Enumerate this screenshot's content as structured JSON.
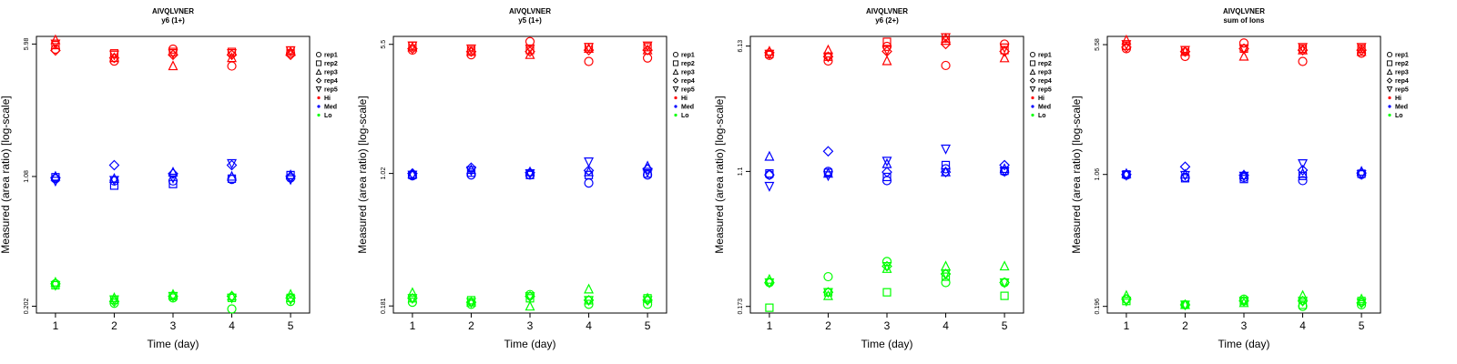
{
  "colors": {
    "Hi": "#ff0000",
    "Med": "#0000ff",
    "Lo": "#00ff00"
  },
  "legend": {
    "replicates": [
      {
        "label": "rep1",
        "shape": "circle"
      },
      {
        "label": "rep2",
        "shape": "square"
      },
      {
        "label": "rep3",
        "shape": "triangle-up"
      },
      {
        "label": "rep4",
        "shape": "diamond"
      },
      {
        "label": "rep5",
        "shape": "triangle-down"
      }
    ],
    "levels": [
      "Hi",
      "Med",
      "Lo"
    ]
  },
  "chart_data": [
    {
      "type": "scatter",
      "title": "AIVQLVNER",
      "subtitle": "y6 (1+)",
      "xlabel": "Time (day)",
      "ylabel": "Measured (area ratio) [log-scale]",
      "log_y": true,
      "ylim": [
        0.185,
        6.6
      ],
      "x_ticks": [
        1,
        2,
        3,
        4,
        5
      ],
      "y_ticks": [
        {
          "value": 0.202,
          "label": "0.202"
        },
        {
          "value": 1.08,
          "label": "1.08"
        },
        {
          "value": 5.98,
          "label": "5.98"
        }
      ],
      "legend_position": "right",
      "series": [
        {
          "name": "Hi",
          "values": {
            "rep1": [
              5.6,
              4.8,
              5.6,
              4.5,
              5.3
            ],
            "rep2": [
              5.9,
              5.3,
              5.4,
              5.4,
              5.5
            ],
            "rep3": [
              6.3,
              5.0,
              4.5,
              5.0,
              5.4
            ],
            "rep4": [
              5.5,
              5.0,
              5.2,
              5.2,
              5.2
            ],
            "rep5": [
              6.0,
              5.2,
              5.3,
              5.3,
              5.5
            ]
          }
        },
        {
          "name": "Med",
          "values": {
            "rep1": [
              1.05,
              1.02,
              1.02,
              1.04,
              1.06
            ],
            "rep2": [
              1.07,
              0.96,
              0.98,
              1.05,
              1.1
            ],
            "rep3": [
              1.08,
              1.05,
              1.14,
              1.08,
              1.1
            ],
            "rep4": [
              1.06,
              1.25,
              1.12,
              1.25,
              1.08
            ],
            "rep5": [
              1.02,
              1.03,
              1.06,
              1.28,
              1.04
            ]
          }
        },
        {
          "name": "Lo",
          "values": {
            "rep1": [
              0.27,
              0.21,
              0.225,
              0.195,
              0.215
            ],
            "rep2": [
              0.265,
              0.22,
              0.23,
              0.225,
              0.225
            ],
            "rep3": [
              0.275,
              0.225,
              0.235,
              0.23,
              0.235
            ],
            "rep4": [
              0.27,
              0.215,
              0.23,
              0.23,
              0.225
            ],
            "rep5": [
              0.265,
              0.22,
              0.23,
              0.225,
              0.22
            ]
          }
        }
      ]
    },
    {
      "type": "scatter",
      "title": "AIVQLVNER",
      "subtitle": "y5 (1+)",
      "xlabel": "Time (day)",
      "ylabel": "Measured (area ratio) [log-scale]",
      "log_y": true,
      "ylim": [
        0.165,
        6.1
      ],
      "x_ticks": [
        1,
        2,
        3,
        4,
        5
      ],
      "y_ticks": [
        {
          "value": 0.181,
          "label": "0.181"
        },
        {
          "value": 1.02,
          "label": "1.02"
        },
        {
          "value": 5.5,
          "label": "5.5"
        }
      ],
      "legend_position": "right",
      "series": [
        {
          "name": "Hi",
          "values": {
            "rep1": [
              5.1,
              4.8,
              5.7,
              4.4,
              4.6
            ],
            "rep2": [
              5.4,
              5.1,
              5.1,
              5.3,
              5.3
            ],
            "rep3": [
              5.3,
              5.0,
              4.8,
              5.2,
              5.1
            ],
            "rep4": [
              5.2,
              5.0,
              5.0,
              5.1,
              5.1
            ],
            "rep5": [
              5.4,
              5.2,
              5.2,
              5.3,
              5.4
            ]
          }
        },
        {
          "name": "Med",
          "values": {
            "rep1": [
              0.99,
              1.0,
              1.0,
              0.9,
              1.0
            ],
            "rep2": [
              1.0,
              1.03,
              1.0,
              1.0,
              1.02
            ],
            "rep3": [
              1.01,
              1.07,
              1.04,
              1.04,
              1.12
            ],
            "rep4": [
              1.02,
              1.1,
              1.03,
              1.06,
              1.08
            ],
            "rep5": [
              1.0,
              1.06,
              1.02,
              1.19,
              1.04
            ]
          }
        },
        {
          "name": "Lo",
          "values": {
            "rep1": [
              0.19,
              0.185,
              0.21,
              0.185,
              0.185
            ],
            "rep2": [
              0.2,
              0.195,
              0.2,
              0.195,
              0.2
            ],
            "rep3": [
              0.215,
              0.19,
              0.18,
              0.225,
              0.2
            ],
            "rep4": [
              0.2,
              0.19,
              0.205,
              0.195,
              0.195
            ],
            "rep5": [
              0.2,
              0.19,
              0.205,
              0.195,
              0.195
            ]
          }
        }
      ]
    },
    {
      "type": "scatter",
      "title": "AIVQLVNER",
      "subtitle": "y6 (2+)",
      "xlabel": "Time (day)",
      "ylabel": "Measured (area ratio) [log-scale]",
      "log_y": true,
      "ylim": [
        0.158,
        7.0
      ],
      "x_ticks": [
        1,
        2,
        3,
        4,
        5
      ],
      "y_ticks": [
        {
          "value": 0.173,
          "label": "0.173"
        },
        {
          "value": 1.1,
          "label": "1.1"
        },
        {
          "value": 6.13,
          "label": "6.13"
        }
      ],
      "legend_position": "right",
      "series": [
        {
          "name": "Hi",
          "values": {
            "rep1": [
              5.4,
              5.0,
              6.1,
              4.7,
              6.3
            ],
            "rep2": [
              5.5,
              5.3,
              6.5,
              6.6,
              5.8
            ],
            "rep3": [
              5.7,
              5.8,
              5.0,
              6.8,
              5.2
            ],
            "rep4": [
              5.6,
              5.3,
              5.7,
              6.3,
              5.7
            ],
            "rep5": [
              5.5,
              5.3,
              5.8,
              6.9,
              6.0
            ]
          }
        },
        {
          "name": "Med",
          "values": {
            "rep1": [
              1.05,
              1.1,
              0.97,
              1.14,
              1.1
            ],
            "rep2": [
              1.07,
              1.08,
              1.02,
              1.2,
              1.11
            ],
            "rep3": [
              1.35,
              1.07,
              1.22,
              1.09,
              1.14
            ],
            "rep4": [
              1.05,
              1.45,
              1.09,
              1.09,
              1.2
            ],
            "rep5": [
              0.9,
              1.04,
              1.27,
              1.5,
              1.1
            ]
          }
        },
        {
          "name": "Lo",
          "values": {
            "rep1": [
              0.24,
              0.26,
              0.32,
              0.24,
              0.24
            ],
            "rep2": [
              0.17,
              0.21,
              0.21,
              0.26,
              0.2
            ],
            "rep3": [
              0.25,
              0.2,
              0.29,
              0.3,
              0.3
            ],
            "rep4": [
              0.24,
              0.21,
              0.3,
              0.27,
              0.24
            ],
            "rep5": [
              0.24,
              0.21,
              0.3,
              0.27,
              0.24
            ]
          }
        }
      ]
    },
    {
      "type": "scatter",
      "title": "AIVQLVNER",
      "subtitle": "sum of Ions",
      "xlabel": "Time (day)",
      "ylabel": "Measured (area ratio) [log-scale]",
      "log_y": true,
      "ylim": [
        0.18,
        6.2
      ],
      "x_ticks": [
        1,
        2,
        3,
        4,
        5
      ],
      "y_ticks": [
        {
          "value": 0.196,
          "label": "0.196"
        },
        {
          "value": 1.06,
          "label": "1.06"
        },
        {
          "value": 5.58,
          "label": "5.58"
        }
      ],
      "legend_position": "right",
      "series": [
        {
          "name": "Hi",
          "values": {
            "rep1": [
              5.3,
              4.8,
              5.7,
              4.5,
              5.0
            ],
            "rep2": [
              5.5,
              5.2,
              5.3,
              5.3,
              5.3
            ],
            "rep3": [
              5.9,
              5.1,
              4.8,
              5.2,
              5.1
            ],
            "rep4": [
              5.4,
              5.1,
              5.3,
              5.2,
              5.2
            ],
            "rep5": [
              5.6,
              5.2,
              5.3,
              5.4,
              5.4
            ]
          }
        },
        {
          "name": "Med",
          "values": {
            "rep1": [
              1.05,
              1.02,
              1.02,
              0.98,
              1.06
            ],
            "rep2": [
              1.06,
              1.01,
              1.0,
              1.04,
              1.07
            ],
            "rep3": [
              1.07,
              1.06,
              1.05,
              1.07,
              1.1
            ],
            "rep4": [
              1.06,
              1.17,
              1.05,
              1.12,
              1.08
            ],
            "rep5": [
              1.05,
              1.05,
              1.04,
              1.22,
              1.06
            ]
          }
        },
        {
          "name": "Lo",
          "values": {
            "rep1": [
              0.215,
              0.2,
              0.215,
              0.196,
              0.2
            ],
            "rep2": [
              0.21,
              0.2,
              0.21,
              0.2,
              0.21
            ],
            "rep3": [
              0.225,
              0.2,
              0.205,
              0.225,
              0.215
            ],
            "rep4": [
              0.215,
              0.2,
              0.21,
              0.21,
              0.205
            ],
            "rep5": [
              0.21,
              0.2,
              0.21,
              0.21,
              0.205
            ]
          }
        }
      ]
    }
  ]
}
